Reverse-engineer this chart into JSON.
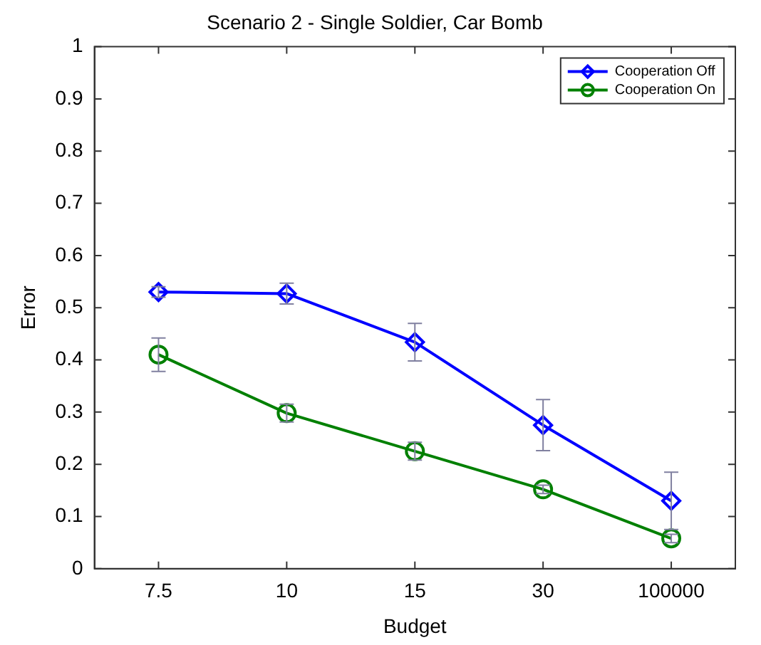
{
  "chart_data": {
    "type": "line",
    "title": "Scenario 2 - Single Soldier, Car Bomb",
    "xlabel": "Budget",
    "ylabel": "Error",
    "categories": [
      "7.5",
      "10",
      "15",
      "30",
      "100000"
    ],
    "series": [
      {
        "name": "Cooperation Off",
        "color": "#0000ff",
        "marker": "diamond",
        "values": [
          0.53,
          0.527,
          0.434,
          0.275,
          0.13
        ],
        "errors": [
          0.01,
          0.02,
          0.036,
          0.049,
          0.055
        ]
      },
      {
        "name": "Cooperation On",
        "color": "#008000",
        "marker": "circle",
        "values": [
          0.41,
          0.298,
          0.225,
          0.152,
          0.058
        ],
        "errors": [
          0.032,
          0.017,
          0.017,
          0.008,
          0.008
        ]
      }
    ],
    "ylim": [
      0,
      1
    ],
    "yticks": [
      0,
      0.1,
      0.2,
      0.3,
      0.4,
      0.5,
      0.6,
      0.7,
      0.8,
      0.9,
      1
    ],
    "grid": false,
    "legend": "top right",
    "line_style": "solid"
  }
}
